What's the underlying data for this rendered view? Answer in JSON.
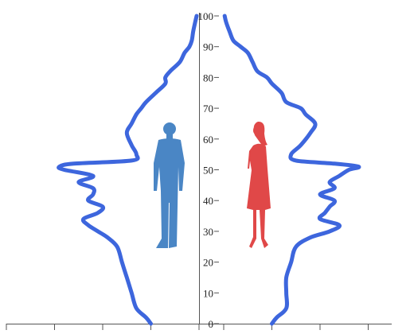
{
  "colors": {
    "profile_line": "#3d66dd",
    "axis": "#555555",
    "male_silhouette": "#4a86c5",
    "female_silhouette": "#e04848",
    "tick_label": "#222222"
  },
  "icons": {
    "male": "male-silhouette-icon",
    "female": "female-silhouette-icon"
  },
  "chart_data": {
    "type": "population-pyramid",
    "title": "",
    "xlabel": "",
    "ylabel": "",
    "age_axis": {
      "ticks": [
        0,
        10,
        20,
        30,
        40,
        50,
        60,
        70,
        80,
        90,
        100
      ],
      "tick_labels": [
        "0",
        "10",
        "20",
        "30",
        "40",
        "50",
        "60",
        "70",
        "80",
        "90",
        "100"
      ],
      "range": [
        0,
        100
      ]
    },
    "x_axis": {
      "range": [
        0,
        4
      ],
      "ticks_left": [
        0,
        1,
        2,
        3,
        4
      ],
      "ticks_right": [
        0,
        1,
        2,
        3,
        4
      ],
      "tick_labels_shown": false
    },
    "grid": false,
    "legend": "none",
    "series": [
      {
        "side": "left",
        "ages": [
          0,
          2,
          5,
          10,
          15,
          20,
          25,
          28,
          30,
          32,
          34,
          36,
          38,
          40,
          42,
          44,
          46,
          48,
          50,
          51,
          52,
          53,
          55,
          58,
          62,
          65,
          68,
          70,
          72,
          75,
          78,
          80,
          82,
          85,
          88,
          90,
          92,
          95,
          98,
          100
        ],
        "values": [
          1.0,
          1.1,
          1.3,
          1.4,
          1.5,
          1.6,
          1.7,
          1.9,
          2.1,
          2.3,
          2.4,
          2.1,
          2.0,
          2.3,
          2.2,
          2.2,
          2.5,
          2.2,
          2.8,
          2.9,
          2.6,
          1.4,
          1.3,
          1.4,
          1.5,
          1.4,
          1.3,
          1.2,
          1.1,
          0.9,
          0.7,
          0.7,
          0.6,
          0.4,
          0.3,
          0.2,
          0.15,
          0.12,
          0.08,
          0.05
        ]
      },
      {
        "side": "right",
        "ages": [
          0,
          2,
          5,
          10,
          15,
          20,
          25,
          28,
          30,
          32,
          34,
          36,
          38,
          40,
          42,
          44,
          46,
          48,
          50,
          51,
          52,
          53,
          55,
          58,
          62,
          65,
          68,
          70,
          72,
          75,
          78,
          80,
          82,
          85,
          88,
          90,
          92,
          95,
          98,
          100
        ],
        "values": [
          1.0,
          1.1,
          1.3,
          1.3,
          1.3,
          1.4,
          1.5,
          1.8,
          2.2,
          2.4,
          2.0,
          2.1,
          2.2,
          2.3,
          2.0,
          2.3,
          2.2,
          2.4,
          2.6,
          2.8,
          2.3,
          1.5,
          1.4,
          1.6,
          1.8,
          1.9,
          1.7,
          1.6,
          1.3,
          1.2,
          1.0,
          0.9,
          0.7,
          0.6,
          0.5,
          0.35,
          0.2,
          0.12,
          0.05,
          0.02
        ]
      }
    ]
  }
}
